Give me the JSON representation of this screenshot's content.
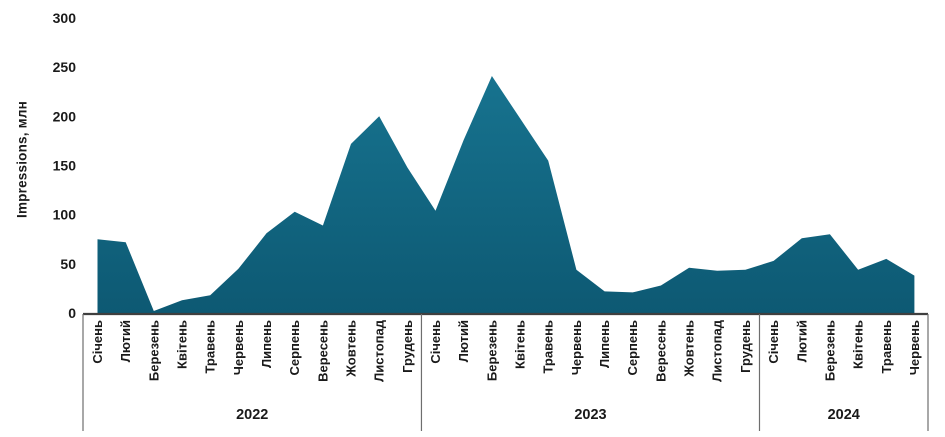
{
  "chart_data": {
    "type": "area",
    "title": "",
    "ylabel": "Impressions, млн",
    "ylim": [
      0,
      300
    ],
    "yticks": [
      0,
      50,
      100,
      150,
      200,
      250,
      300
    ],
    "grid": false,
    "legend": "none",
    "colors": {
      "area_gradient_top": "#17738f",
      "area_gradient_bottom": "#0d5973",
      "axis_line": "#3f3f3f",
      "separator_line": "#6e6e6e",
      "text": "#1a1a1a"
    },
    "year_groups": [
      {
        "label": "2022",
        "months": [
          "Січень",
          "Лютий",
          "Березень",
          "Квітень",
          "Травень",
          "Червень",
          "Липень",
          "Серпень",
          "Вересень",
          "Жовтень",
          "Листопад",
          "Грудень"
        ],
        "values": [
          75,
          72,
          2,
          13,
          18,
          45,
          81,
          103,
          89,
          172,
          200,
          148
        ]
      },
      {
        "label": "2023",
        "months": [
          "Січень",
          "Лютий",
          "Березень",
          "Квітень",
          "Травень",
          "Червень",
          "Липень",
          "Серпень",
          "Вересень",
          "Жовтень",
          "Листопад",
          "Грудень"
        ],
        "values": [
          104,
          176,
          241,
          198,
          155,
          44,
          22,
          21,
          28,
          46,
          43,
          44
        ]
      },
      {
        "label": "2024",
        "months": [
          "Січень",
          "Лютий",
          "Березень",
          "Квітень",
          "Травень",
          "Червень"
        ],
        "values": [
          53,
          76,
          80,
          44,
          55,
          38
        ]
      }
    ]
  }
}
